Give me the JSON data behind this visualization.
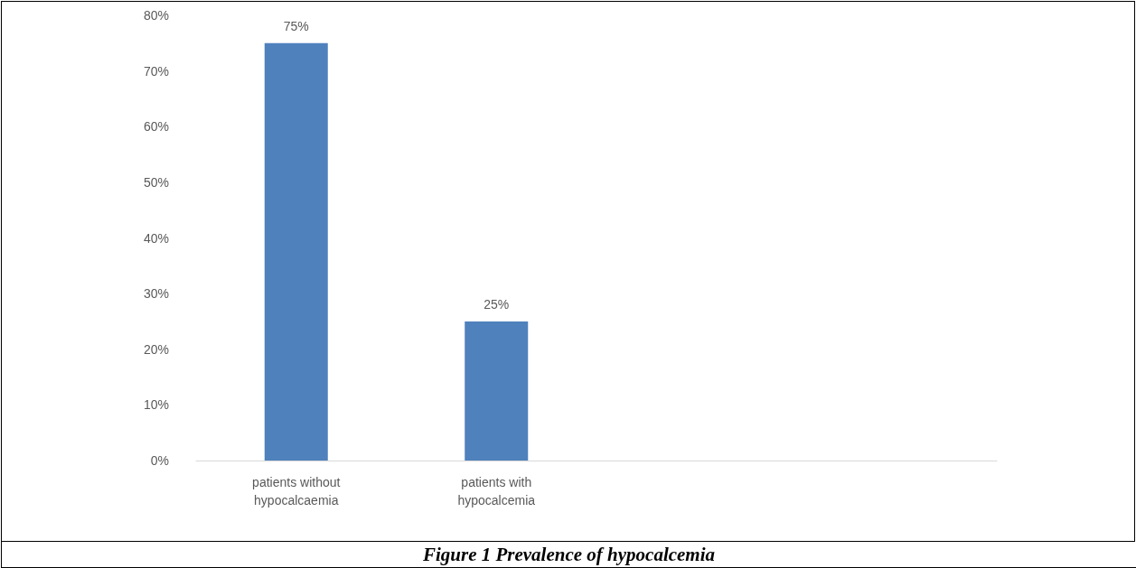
{
  "chart_data": {
    "type": "bar",
    "title": "Figure 1 Prevalence of hypocalcemia",
    "categories": [
      "patients without\nhypocalcaemia",
      "patients with\nhypocalcemia",
      null,
      null
    ],
    "values": [
      75,
      25,
      null,
      null
    ],
    "value_labels": [
      "75%",
      "25%",
      null,
      null
    ],
    "color": "#4f81bd",
    "ylim": [
      0,
      80
    ],
    "yticks": [
      {
        "value": 0,
        "label": "0%"
      },
      {
        "value": 10,
        "label": "10%"
      },
      {
        "value": 20,
        "label": "20%"
      },
      {
        "value": 30,
        "label": "30%"
      },
      {
        "value": 40,
        "label": "40%"
      },
      {
        "value": 50,
        "label": "50%"
      },
      {
        "value": 60,
        "label": "60%"
      },
      {
        "value": 70,
        "label": "70%"
      },
      {
        "value": 80,
        "label": "80%"
      }
    ],
    "grid": false
  }
}
